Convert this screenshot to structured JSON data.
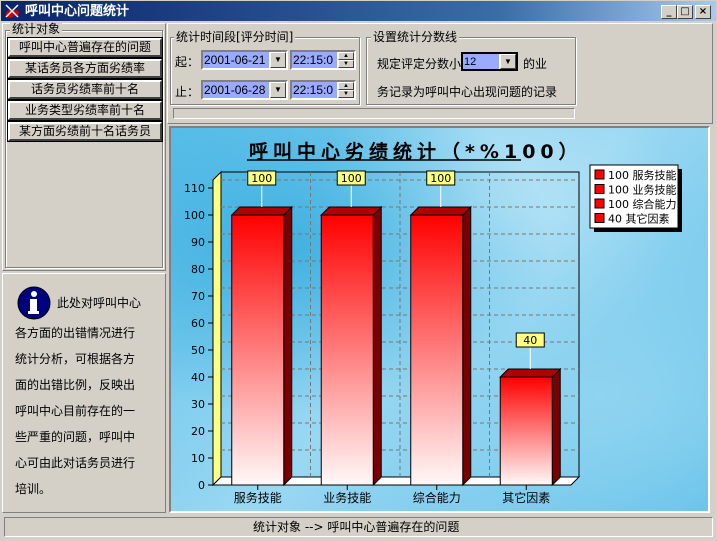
{
  "window": {
    "title": "呼叫中心问题统计",
    "controls": [
      "_",
      "□",
      "×"
    ]
  },
  "left": {
    "group_label": "统计对象",
    "buttons": [
      "呼叫中心普遍存在的问题",
      "某话务员各方面劣绩率",
      "话务员劣绩率前十名",
      "业务类型劣绩率前十名",
      "某方面劣绩前十名话务员"
    ],
    "info_icon": "info-icon",
    "info_lines": [
      "此处对呼叫中心",
      "各方面的出错情况进行",
      "统计分析，可根据各方",
      "面的出错比例，反映出",
      "呼叫中心目前存在的一",
      "些严重的问题，呼叫中",
      "心可由此对话务员进行",
      "培训。"
    ]
  },
  "time": {
    "group_label": "统计时间段[评分时间]",
    "start_label": "起：",
    "start_date": "2001-06-21",
    "start_time": "22:15:0",
    "end_label": "止：",
    "end_date": "2001-06-28",
    "end_time": "22:15:0"
  },
  "score": {
    "group_label": "设置统计分数线",
    "prefix": "规定评定分数小",
    "value": "12",
    "suffix": "的业",
    "line2": "务记录为呼叫中心出现问题的记录"
  },
  "status": {
    "text": "统计对象  -->  呼叫中心普遍存在的问题"
  },
  "chart_data": {
    "type": "bar",
    "title": "呼叫中心劣绩统计（*%100）",
    "categories": [
      "服务技能",
      "业务技能",
      "综合能力",
      "其它因素"
    ],
    "values": [
      100,
      100,
      100,
      40
    ],
    "ylim": [
      0,
      110
    ],
    "yticks": [
      0,
      10,
      20,
      30,
      40,
      50,
      60,
      70,
      80,
      90,
      100,
      110
    ],
    "grid": true,
    "legend_position": "top-right",
    "legend": [
      "100 服务技能",
      "100 业务技能",
      "100 综合能力",
      "40 其它因素"
    ],
    "data_labels": [
      "100",
      "100",
      "100",
      "40"
    ],
    "bar_color": "#ff0000",
    "label_bg": "#ffff80"
  }
}
